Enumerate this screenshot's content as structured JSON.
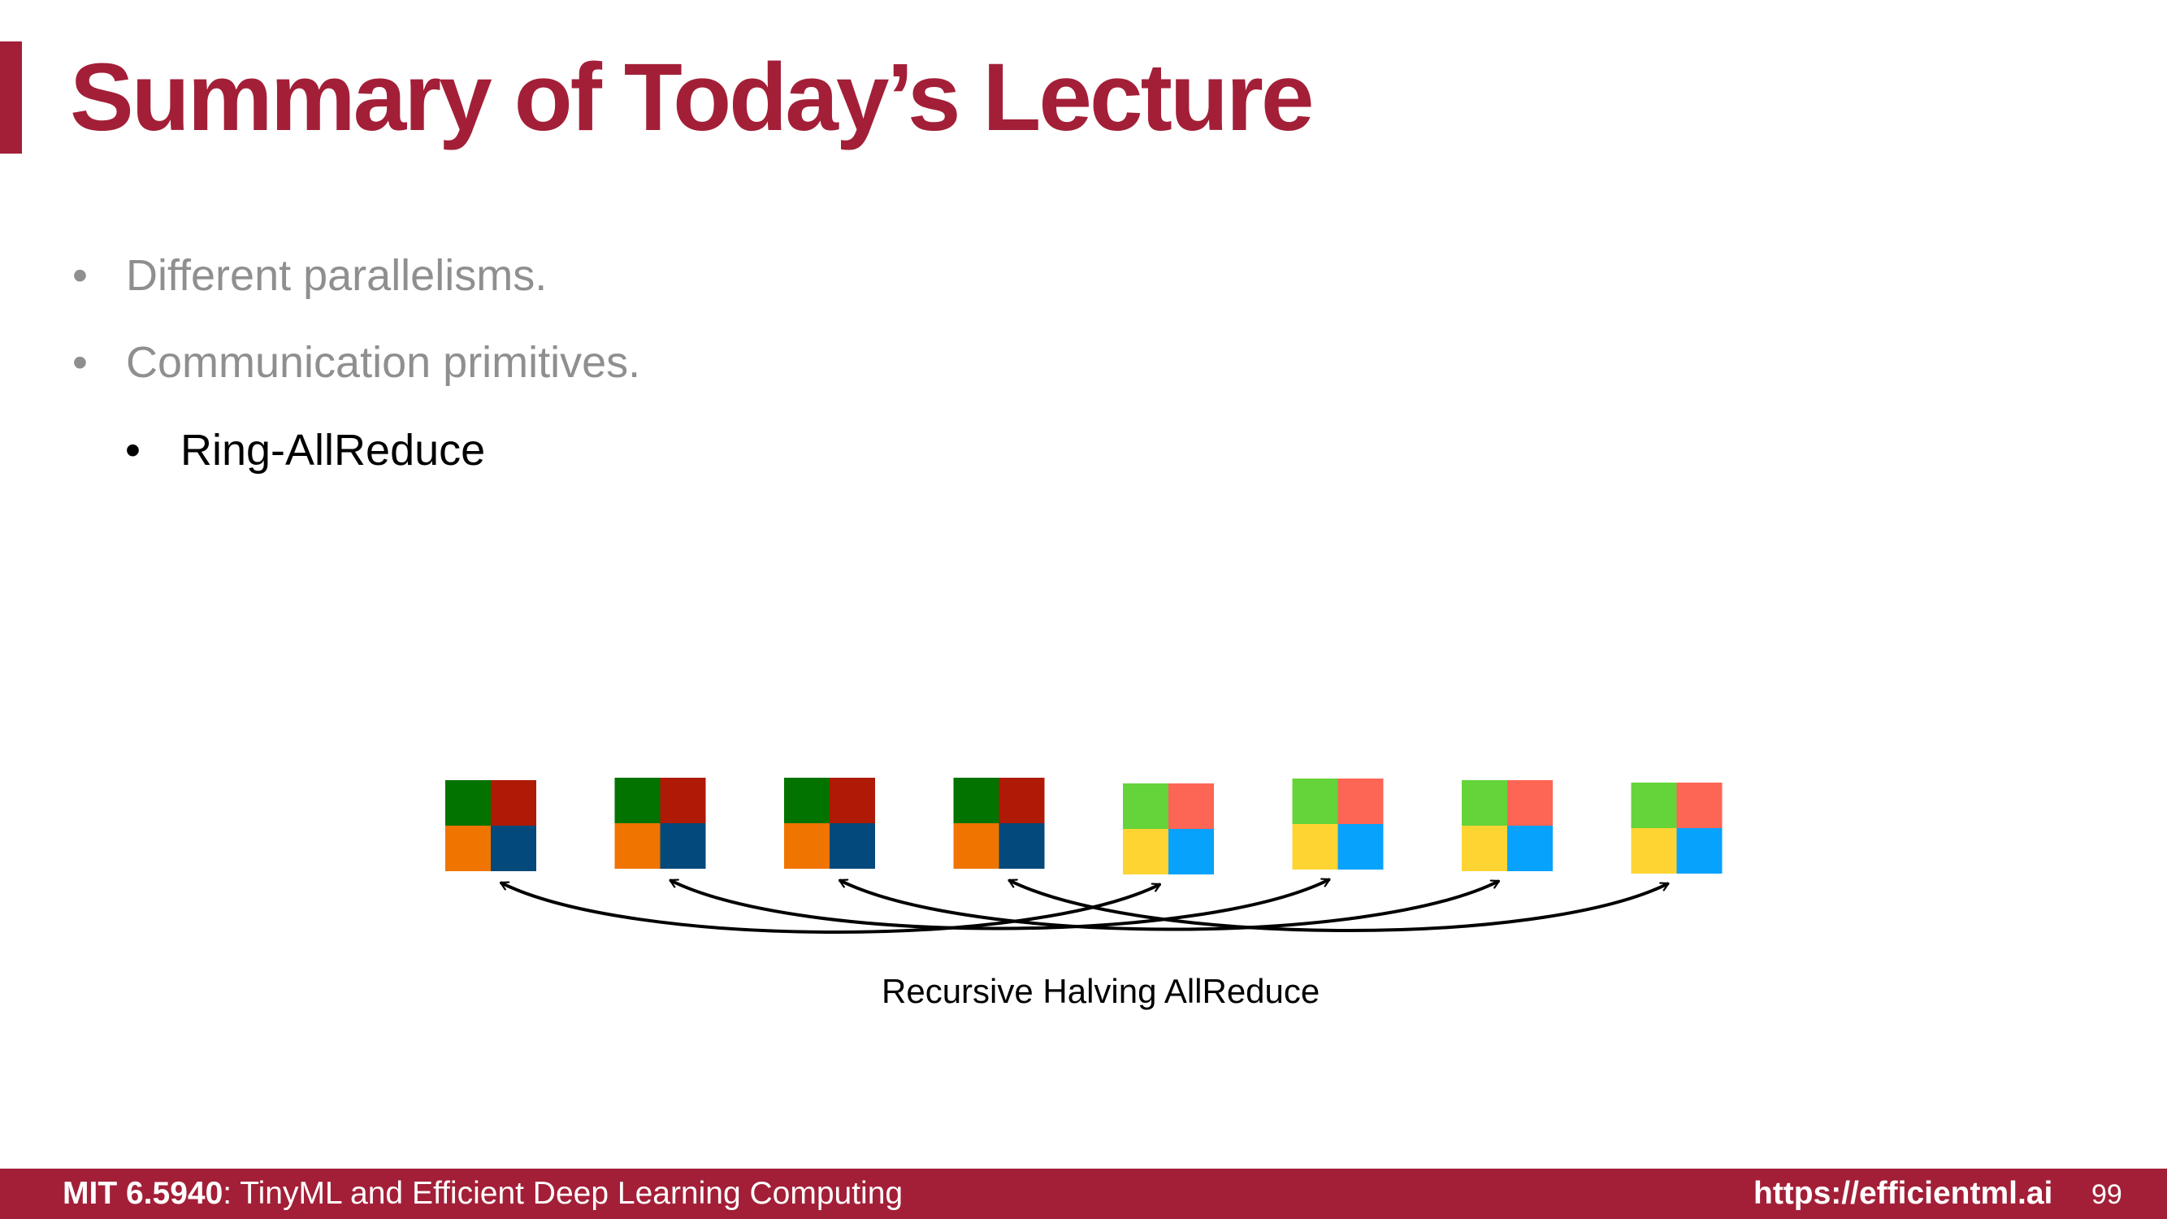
{
  "slide": {
    "title": "Summary of Today’s Lecture",
    "bullets": [
      {
        "text": "Different parallelisms.",
        "level": 1,
        "state": "dimmed"
      },
      {
        "text": "Communication primitives.",
        "level": 1,
        "state": "dimmed"
      },
      {
        "text": "Ring-AllReduce",
        "level": 2,
        "state": "active"
      }
    ],
    "bullet_symbol": "•",
    "diagram": {
      "caption": "Recursive Halving AllReduce",
      "nodes": [
        {
          "colors": [
            "#037300",
            "#ae1a05",
            "#f07400",
            "#03497b"
          ]
        },
        {
          "colors": [
            "#037300",
            "#ae1a05",
            "#f07400",
            "#03497b"
          ]
        },
        {
          "colors": [
            "#037300",
            "#ae1a05",
            "#f07400",
            "#03497b"
          ]
        },
        {
          "colors": [
            "#037300",
            "#ae1a05",
            "#f07400",
            "#03497b"
          ]
        },
        {
          "colors": [
            "#64d43a",
            "#fd6554",
            "#fed433",
            "#06a2fc"
          ]
        },
        {
          "colors": [
            "#64d43a",
            "#fd6554",
            "#fed433",
            "#06a2fc"
          ]
        },
        {
          "colors": [
            "#64d43a",
            "#fd6554",
            "#fed433",
            "#06a2fc"
          ]
        },
        {
          "colors": [
            "#64d43a",
            "#fd6554",
            "#fed433",
            "#06a2fc"
          ]
        }
      ],
      "exchanges": [
        [
          1,
          5
        ],
        [
          2,
          6
        ],
        [
          3,
          7
        ],
        [
          4,
          8
        ]
      ]
    },
    "footer": {
      "course_code": "MIT 6.5940",
      "course_name": ": TinyML and Efficient Deep Learning Computing",
      "url": "https://efficientml.ai",
      "page_number": "99"
    },
    "colors": {
      "accent": "#a31f37",
      "dimmed_text": "#8f8f8f",
      "active_text": "#000000"
    }
  }
}
